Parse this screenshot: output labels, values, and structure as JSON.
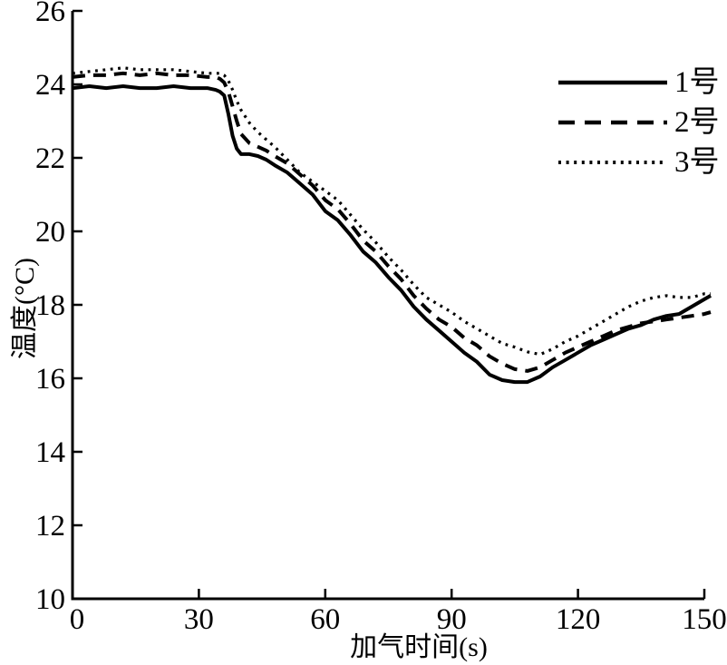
{
  "chart_data": {
    "type": "line",
    "title": "",
    "xlabel": "加气时间(s)",
    "ylabel": "温度(°C)",
    "xlim": [
      0,
      150
    ],
    "ylim": [
      10,
      26
    ],
    "xticks": [
      0,
      30,
      60,
      90,
      120,
      150
    ],
    "yticks": [
      10,
      12,
      14,
      16,
      18,
      20,
      22,
      24,
      26
    ],
    "grid": false,
    "legend_position": "top-right",
    "line_color": "#000000",
    "background_color": "#ffffff",
    "x": [
      0,
      4,
      8,
      12,
      16,
      20,
      24,
      28,
      32,
      34,
      35,
      36,
      37,
      38,
      39,
      40,
      42,
      44,
      46,
      48,
      51,
      54,
      57,
      60,
      63,
      66,
      69,
      72,
      75,
      78,
      81,
      84,
      87,
      90,
      93,
      96,
      99,
      102,
      105,
      108,
      111,
      114,
      117,
      120,
      123,
      126,
      129,
      132,
      135,
      138,
      141,
      144,
      147,
      150,
      151.5
    ],
    "series": [
      {
        "name": "1号",
        "style": "solid",
        "values": [
          23.9,
          23.95,
          23.9,
          23.95,
          23.9,
          23.9,
          23.95,
          23.9,
          23.9,
          23.85,
          23.8,
          23.7,
          23.2,
          22.6,
          22.25,
          22.1,
          22.1,
          22.05,
          21.95,
          21.8,
          21.6,
          21.3,
          21.0,
          20.55,
          20.3,
          19.9,
          19.45,
          19.15,
          18.75,
          18.4,
          17.95,
          17.6,
          17.3,
          17.0,
          16.7,
          16.45,
          16.1,
          15.95,
          15.9,
          15.9,
          16.05,
          16.3,
          16.5,
          16.7,
          16.9,
          17.05,
          17.2,
          17.35,
          17.45,
          17.6,
          17.7,
          17.75,
          17.95,
          18.15,
          18.25
        ]
      },
      {
        "name": "2号",
        "style": "dashed",
        "values": [
          24.2,
          24.25,
          24.25,
          24.3,
          24.25,
          24.3,
          24.25,
          24.25,
          24.2,
          24.2,
          24.15,
          24.05,
          23.8,
          23.4,
          23.0,
          22.65,
          22.4,
          22.3,
          22.2,
          22.05,
          21.85,
          21.55,
          21.25,
          20.85,
          20.6,
          20.2,
          19.75,
          19.45,
          19.05,
          18.7,
          18.25,
          17.9,
          17.6,
          17.4,
          17.1,
          16.9,
          16.6,
          16.4,
          16.25,
          16.2,
          16.3,
          16.5,
          16.7,
          16.85,
          17.0,
          17.15,
          17.3,
          17.4,
          17.5,
          17.55,
          17.6,
          17.65,
          17.7,
          17.75,
          17.8
        ]
      },
      {
        "name": "3号",
        "style": "dotted",
        "values": [
          24.3,
          24.35,
          24.4,
          24.45,
          24.4,
          24.4,
          24.4,
          24.35,
          24.3,
          24.3,
          24.3,
          24.25,
          24.1,
          23.85,
          23.55,
          23.3,
          22.95,
          22.7,
          22.5,
          22.3,
          21.95,
          21.6,
          21.35,
          21.1,
          20.85,
          20.45,
          20.05,
          19.7,
          19.3,
          18.95,
          18.55,
          18.2,
          18.0,
          17.8,
          17.55,
          17.35,
          17.15,
          16.95,
          16.85,
          16.72,
          16.65,
          16.8,
          17.0,
          17.15,
          17.35,
          17.55,
          17.75,
          17.95,
          18.1,
          18.2,
          18.25,
          18.2,
          18.2,
          18.3,
          18.3
        ]
      }
    ]
  }
}
